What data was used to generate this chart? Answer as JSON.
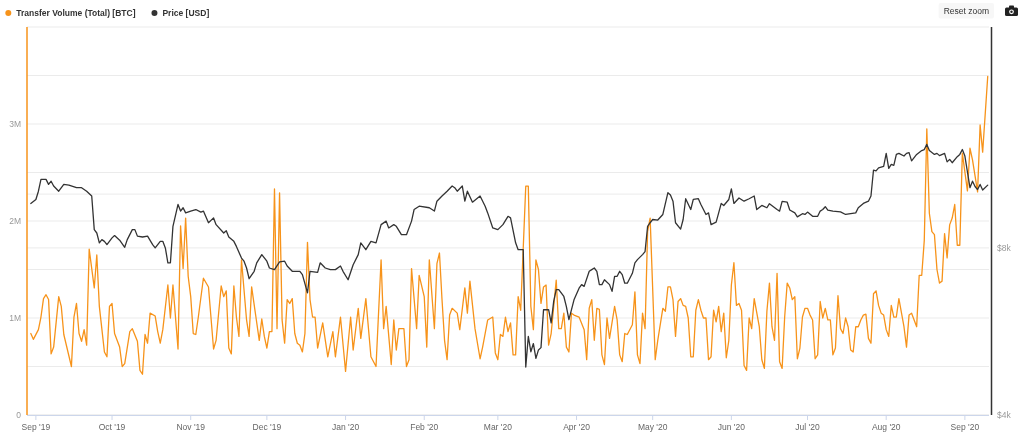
{
  "chart_data": {
    "type": "line",
    "log": "y2",
    "grid": "y",
    "legend": "top left",
    "xlim": [
      "2019-08-28T12:00",
      "2020-09-10T12:00"
    ],
    "xticks": [
      {
        "value": "2019-09-01",
        "label": "Sep '19"
      },
      {
        "value": "2019-10-01",
        "label": "Oct '19"
      },
      {
        "value": "2019-11-01",
        "label": "Nov '19"
      },
      {
        "value": "2019-12-01",
        "label": "Dec '19"
      },
      {
        "value": "2020-01-01",
        "label": "Jan '20"
      },
      {
        "value": "2020-02-01",
        "label": "Feb '20"
      },
      {
        "value": "2020-03-01",
        "label": "Mar '20"
      },
      {
        "value": "2020-04-01",
        "label": "Apr '20"
      },
      {
        "value": "2020-05-01",
        "label": "May '20"
      },
      {
        "value": "2020-06-01",
        "label": "Jun '20"
      },
      {
        "value": "2020-07-01",
        "label": "Jul '20"
      },
      {
        "value": "2020-08-01",
        "label": "Aug '20"
      },
      {
        "value": "2020-09-01",
        "label": "Sep '20"
      }
    ],
    "ylim": [
      0,
      4000000
    ],
    "yticks": [
      0,
      {
        "value": 500000,
        "label": null
      },
      {
        "value": 1000000,
        "label": "1M"
      },
      {
        "value": 1500000,
        "label": null
      },
      {
        "value": 2000000,
        "label": "2M"
      },
      {
        "value": 2500000,
        "label": null
      },
      {
        "value": 3000000,
        "label": "3M"
      },
      {
        "value": 3500000,
        "label": null
      },
      {
        "value": 4000000,
        "label": null
      }
    ],
    "y2lim": [
      4000,
      20000
    ],
    "y2ticks": [
      {
        "value": 4000,
        "label": "$4k"
      },
      {
        "value": 8000,
        "label": "$8k"
      },
      {
        "value": 10000,
        "label": null
      }
    ],
    "annotations": [
      "Reset zoom"
    ],
    "series": [
      {
        "name": "Transfer Volume (Total) [BTC]",
        "color": "#f7931a",
        "x": [
          "2019-08-30",
          "2019-08-31",
          "2019-09-02",
          "2019-09-03",
          "2019-09-04",
          "2019-09-05",
          "2019-09-06",
          "2019-09-07",
          "2019-09-08",
          "2019-09-10",
          "2019-09-11",
          "2019-09-12",
          "2019-09-15",
          "2019-09-16",
          "2019-09-17",
          "2019-09-18",
          "2019-09-19",
          "2019-09-20",
          "2019-09-21",
          "2019-09-22",
          "2019-09-24",
          "2019-09-25",
          "2019-09-26",
          "2019-09-28",
          "2019-09-29",
          "2019-09-30",
          "2019-10-01",
          "2019-10-02",
          "2019-10-04",
          "2019-10-05",
          "2019-10-06",
          "2019-10-08",
          "2019-10-09",
          "2019-10-11",
          "2019-10-12",
          "2019-10-13",
          "2019-10-14",
          "2019-10-15",
          "2019-10-16",
          "2019-10-18",
          "2019-10-19",
          "2019-10-20",
          "2019-10-21",
          "2019-10-23",
          "2019-10-24",
          "2019-10-25",
          "2019-10-27",
          "2019-10-28",
          "2019-10-29",
          "2019-10-30",
          "2019-10-31",
          "2019-11-01",
          "2019-11-02",
          "2019-11-03",
          "2019-11-04",
          "2019-11-06",
          "2019-11-08",
          "2019-11-10",
          "2019-11-11",
          "2019-11-13",
          "2019-11-14",
          "2019-11-15",
          "2019-11-16",
          "2019-11-17",
          "2019-11-18",
          "2019-11-19",
          "2019-11-20",
          "2019-11-21",
          "2019-11-23",
          "2019-11-24",
          "2019-11-25",
          "2019-11-28",
          "2019-11-29",
          "2019-11-30",
          "2019-12-01",
          "2019-12-02",
          "2019-12-03",
          "2019-12-04",
          "2019-12-05",
          "2019-12-06",
          "2019-12-07",
          "2019-12-08",
          "2019-12-09",
          "2019-12-10",
          "2019-12-11",
          "2019-12-12",
          "2019-12-13",
          "2019-12-14",
          "2019-12-15",
          "2019-12-16",
          "2019-12-17",
          "2019-12-18",
          "2019-12-19",
          "2019-12-20",
          "2019-12-21",
          "2019-12-23",
          "2019-12-25",
          "2019-12-27",
          "2019-12-28",
          "2019-12-30",
          "2020-01-01",
          "2020-01-03",
          "2020-01-04",
          "2020-01-06",
          "2020-01-07",
          "2020-01-09",
          "2020-01-11",
          "2020-01-13",
          "2020-01-15",
          "2020-01-16",
          "2020-01-17",
          "2020-01-19",
          "2020-01-20",
          "2020-01-21",
          "2020-01-22",
          "2020-01-24",
          "2020-01-25",
          "2020-01-26",
          "2020-01-27",
          "2020-01-29",
          "2020-01-30",
          "2020-02-01",
          "2020-02-02",
          "2020-02-03",
          "2020-02-05",
          "2020-02-06",
          "2020-02-07",
          "2020-02-08",
          "2020-02-09",
          "2020-02-10",
          "2020-02-11",
          "2020-02-12",
          "2020-02-14",
          "2020-02-15",
          "2020-02-17",
          "2020-02-18",
          "2020-02-19",
          "2020-02-21",
          "2020-02-23",
          "2020-02-24",
          "2020-02-26",
          "2020-02-28",
          "2020-02-29",
          "2020-03-01",
          "2020-03-02",
          "2020-03-03",
          "2020-03-04",
          "2020-03-05",
          "2020-03-06",
          "2020-03-07",
          "2020-03-08",
          "2020-03-09",
          "2020-03-10",
          "2020-03-12",
          "2020-03-13",
          "2020-03-14",
          "2020-03-15",
          "2020-03-16",
          "2020-03-17",
          "2020-03-18",
          "2020-03-19",
          "2020-03-20",
          "2020-03-21",
          "2020-03-22",
          "2020-03-24",
          "2020-03-25",
          "2020-03-26",
          "2020-03-27",
          "2020-03-28",
          "2020-03-29",
          "2020-03-30",
          "2020-03-31",
          "2020-04-02",
          "2020-04-04",
          "2020-04-05",
          "2020-04-06",
          "2020-04-07",
          "2020-04-08",
          "2020-04-09",
          "2020-04-10",
          "2020-04-11",
          "2020-04-12",
          "2020-04-13",
          "2020-04-14",
          "2020-04-16",
          "2020-04-17",
          "2020-04-18",
          "2020-04-19",
          "2020-04-20",
          "2020-04-21",
          "2020-04-23",
          "2020-04-24",
          "2020-04-25",
          "2020-04-26",
          "2020-04-27",
          "2020-04-28",
          "2020-04-29",
          "2020-04-30",
          "2020-05-02",
          "2020-05-03",
          "2020-05-05",
          "2020-05-06",
          "2020-05-07",
          "2020-05-08",
          "2020-05-09",
          "2020-05-10",
          "2020-05-11",
          "2020-05-12",
          "2020-05-13",
          "2020-05-14",
          "2020-05-15",
          "2020-05-16",
          "2020-05-17",
          "2020-05-18",
          "2020-05-19",
          "2020-05-20",
          "2020-05-21",
          "2020-05-22",
          "2020-05-23",
          "2020-05-24",
          "2020-05-25",
          "2020-05-26",
          "2020-05-27",
          "2020-05-28",
          "2020-05-29",
          "2020-05-30",
          "2020-05-31",
          "2020-06-01",
          "2020-06-02",
          "2020-06-03",
          "2020-06-04",
          "2020-06-05",
          "2020-06-06",
          "2020-06-07",
          "2020-06-08",
          "2020-06-09",
          "2020-06-10",
          "2020-06-12",
          "2020-06-13",
          "2020-06-14",
          "2020-06-15",
          "2020-06-16",
          "2020-06-17",
          "2020-06-18",
          "2020-06-19",
          "2020-06-20",
          "2020-06-21",
          "2020-06-22",
          "2020-06-23",
          "2020-06-24",
          "2020-06-25",
          "2020-06-26",
          "2020-06-27",
          "2020-06-28",
          "2020-06-29",
          "2020-06-30",
          "2020-07-01",
          "2020-07-02",
          "2020-07-03",
          "2020-07-04",
          "2020-07-05",
          "2020-07-06",
          "2020-07-07",
          "2020-07-08",
          "2020-07-09",
          "2020-07-10",
          "2020-07-11",
          "2020-07-12",
          "2020-07-13",
          "2020-07-14",
          "2020-07-15",
          "2020-07-16",
          "2020-07-17",
          "2020-07-18",
          "2020-07-19",
          "2020-07-20",
          "2020-07-21",
          "2020-07-22",
          "2020-07-23",
          "2020-07-24",
          "2020-07-25",
          "2020-07-26",
          "2020-07-27",
          "2020-07-28",
          "2020-07-29",
          "2020-07-30",
          "2020-07-31",
          "2020-08-01",
          "2020-08-02",
          "2020-08-03",
          "2020-08-04",
          "2020-08-05",
          "2020-08-06",
          "2020-08-08",
          "2020-08-09",
          "2020-08-10",
          "2020-08-11",
          "2020-08-13",
          "2020-08-14",
          "2020-08-15",
          "2020-08-16",
          "2020-08-17",
          "2020-08-18",
          "2020-08-19",
          "2020-08-20",
          "2020-08-21",
          "2020-08-22",
          "2020-08-23",
          "2020-08-24",
          "2020-08-25",
          "2020-08-26",
          "2020-08-27",
          "2020-08-28",
          "2020-08-29",
          "2020-08-30",
          "2020-08-31",
          "2020-09-02",
          "2020-09-03",
          "2020-09-04",
          "2020-09-06",
          "2020-09-07",
          "2020-09-08",
          "2020-09-10"
        ],
        "values": [
          840000,
          780000,
          880000,
          1010000,
          1200000,
          1240000,
          1190000,
          630000,
          700000,
          1220000,
          1120000,
          830000,
          500000,
          1010000,
          1150000,
          840000,
          760000,
          880000,
          720000,
          1710000,
          1310000,
          1650000,
          1120000,
          650000,
          600000,
          1120000,
          1150000,
          840000,
          700000,
          500000,
          530000,
          860000,
          890000,
          760000,
          460000,
          420000,
          830000,
          740000,
          1050000,
          1020000,
          860000,
          740000,
          880000,
          1340000,
          1000000,
          1340000,
          680000,
          1950000,
          1510000,
          2030000,
          1430000,
          1220000,
          840000,
          830000,
          1010000,
          1410000,
          1320000,
          680000,
          770000,
          1330000,
          1220000,
          1280000,
          690000,
          630000,
          1330000,
          1010000,
          810000,
          1600000,
          980000,
          810000,
          1320000,
          770000,
          990000,
          810000,
          690000,
          860000,
          860000,
          2330000,
          890000,
          2290000,
          980000,
          740000,
          1190000,
          1150000,
          1200000,
          840000,
          740000,
          720000,
          650000,
          840000,
          1780000,
          1190000,
          1010000,
          1010000,
          690000,
          950000,
          600000,
          860000,
          600000,
          1010000,
          450000,
          1010000,
          670000,
          1100000,
          790000,
          1200000,
          600000,
          500000,
          1600000,
          890000,
          1120000,
          520000,
          980000,
          670000,
          890000,
          890000,
          500000,
          570000,
          1510000,
          890000,
          1440000,
          1220000,
          700000,
          1600000,
          890000,
          1560000,
          1670000,
          1190000,
          770000,
          570000,
          1030000,
          1100000,
          1050000,
          880000,
          1310000,
          1050000,
          1380000,
          890000,
          580000,
          700000,
          980000,
          1010000,
          640000,
          570000,
          830000,
          810000,
          1010000,
          860000,
          950000,
          620000,
          620000,
          1220000,
          1080000,
          2360000,
          2360000,
          1120000,
          880000,
          1600000,
          1500000,
          1150000,
          1320000,
          1340000,
          720000,
          840000,
          1390000,
          890000,
          890000,
          1050000,
          700000,
          650000,
          1050000,
          1030000,
          1010000,
          880000,
          570000,
          1100000,
          1190000,
          770000,
          1100000,
          1090000,
          620000,
          520000,
          1000000,
          790000,
          1120000,
          980000,
          620000,
          550000,
          840000,
          830000,
          930000,
          1270000,
          620000,
          530000,
          1050000,
          890000,
          1890000,
          2030000,
          570000,
          770000,
          1100000,
          1070000,
          1320000,
          1320000,
          1190000,
          810000,
          1170000,
          1200000,
          1130000,
          1120000,
          1000000,
          600000,
          600000,
          1080000,
          1190000,
          1080000,
          1000000,
          1000000,
          570000,
          600000,
          1080000,
          960000,
          1120000,
          860000,
          1050000,
          590000,
          770000,
          1340000,
          1570000,
          1130000,
          1150000,
          1080000,
          510000,
          460000,
          1000000,
          890000,
          1200000,
          910000,
          570000,
          480000,
          1070000,
          1360000,
          910000,
          770000,
          1460000,
          550000,
          480000,
          1010000,
          1360000,
          1310000,
          1190000,
          1220000,
          580000,
          690000,
          1010000,
          1100000,
          1100000,
          1030000,
          980000,
          580000,
          620000,
          1170000,
          1000000,
          1100000,
          980000,
          980000,
          620000,
          690000,
          1230000,
          890000,
          840000,
          1000000,
          910000,
          670000,
          650000,
          910000,
          910000,
          980000,
          1030000,
          1040000,
          790000,
          740000,
          1250000,
          1280000,
          1130000,
          1050000,
          1030000,
          880000,
          810000,
          1130000,
          1010000,
          1010000,
          1200000,
          910000,
          700000,
          1030000,
          1050000,
          910000,
          1440000,
          1440000,
          1800000,
          2950000,
          2080000,
          1890000,
          1860000,
          1500000,
          1360000,
          1380000,
          1870000,
          1620000,
          1960000,
          2030000,
          2170000,
          1750000,
          1750000,
          2700000,
          2310000,
          2750000,
          2630000,
          2300000,
          2990000,
          2710000,
          3490000
        ]
      },
      {
        "name": "Price [USD]",
        "color": "#333333",
        "axis": "y2",
        "x": [
          "2019-08-30",
          "2019-09-01",
          "2019-09-02",
          "2019-09-03",
          "2019-09-05",
          "2019-09-06",
          "2019-09-07",
          "2019-09-08",
          "2019-09-10",
          "2019-09-12",
          "2019-09-14",
          "2019-09-17",
          "2019-09-19",
          "2019-09-21",
          "2019-09-23",
          "2019-09-24",
          "2019-09-25",
          "2019-09-26",
          "2019-09-27",
          "2019-09-28",
          "2019-09-29",
          "2019-10-01",
          "2019-10-02",
          "2019-10-04",
          "2019-10-06",
          "2019-10-07",
          "2019-10-09",
          "2019-10-10",
          "2019-10-11",
          "2019-10-13",
          "2019-10-15",
          "2019-10-17",
          "2019-10-18",
          "2019-10-20",
          "2019-10-21",
          "2019-10-22",
          "2019-10-23",
          "2019-10-24",
          "2019-10-25",
          "2019-10-27",
          "2019-10-28",
          "2019-10-29",
          "2019-10-30",
          "2019-11-01",
          "2019-11-03",
          "2019-11-05",
          "2019-11-06",
          "2019-11-08",
          "2019-11-10",
          "2019-11-11",
          "2019-11-14",
          "2019-11-15",
          "2019-11-16",
          "2019-11-18",
          "2019-11-19",
          "2019-11-21",
          "2019-11-22",
          "2019-11-23",
          "2019-11-24",
          "2019-11-26",
          "2019-11-27",
          "2019-11-29",
          "2019-12-01",
          "2019-12-02",
          "2019-12-04",
          "2019-12-06",
          "2019-12-08",
          "2019-12-09",
          "2019-12-11",
          "2019-12-14",
          "2019-12-15",
          "2019-12-17",
          "2019-12-18",
          "2019-12-21",
          "2019-12-22",
          "2019-12-24",
          "2019-12-26",
          "2019-12-28",
          "2019-12-30",
          "2019-12-31",
          "2020-01-02",
          "2020-01-04",
          "2020-01-06",
          "2020-01-07",
          "2020-01-09",
          "2020-01-11",
          "2020-01-13",
          "2020-01-15",
          "2020-01-17",
          "2020-01-18",
          "2020-01-20",
          "2020-01-21",
          "2020-01-23",
          "2020-01-25",
          "2020-01-27",
          "2020-01-28",
          "2020-01-30",
          "2020-02-03",
          "2020-02-05",
          "2020-02-06",
          "2020-02-08",
          "2020-02-10",
          "2020-02-12",
          "2020-02-13",
          "2020-02-14",
          "2020-02-16",
          "2020-02-17",
          "2020-02-18",
          "2020-02-20",
          "2020-02-23",
          "2020-02-25",
          "2020-02-26",
          "2020-02-28",
          "2020-03-01",
          "2020-03-03",
          "2020-03-05",
          "2020-03-06",
          "2020-03-08",
          "2020-03-09",
          "2020-03-11",
          "2020-03-12",
          "2020-03-13",
          "2020-03-14",
          "2020-03-15",
          "2020-03-16",
          "2020-03-17",
          "2020-03-18",
          "2020-03-19",
          "2020-03-21",
          "2020-03-22",
          "2020-03-23",
          "2020-03-24",
          "2020-03-25",
          "2020-03-27",
          "2020-03-28",
          "2020-03-29",
          "2020-03-31",
          "2020-04-02",
          "2020-04-03",
          "2020-04-04",
          "2020-04-06",
          "2020-04-07",
          "2020-04-08",
          "2020-04-09",
          "2020-04-10",
          "2020-04-11",
          "2020-04-12",
          "2020-04-14",
          "2020-04-15",
          "2020-04-16",
          "2020-04-17",
          "2020-04-18",
          "2020-04-19",
          "2020-04-20",
          "2020-04-21",
          "2020-04-23",
          "2020-04-24",
          "2020-04-25",
          "2020-04-27",
          "2020-04-28",
          "2020-04-29",
          "2020-04-30",
          "2020-05-01",
          "2020-05-03",
          "2020-05-05",
          "2020-05-07",
          "2020-05-08",
          "2020-05-09",
          "2020-05-10",
          "2020-05-12",
          "2020-05-13",
          "2020-05-14",
          "2020-05-16",
          "2020-05-17",
          "2020-05-19",
          "2020-05-20",
          "2020-05-22",
          "2020-05-23",
          "2020-05-24",
          "2020-05-26",
          "2020-05-27",
          "2020-05-28",
          "2020-05-29",
          "2020-05-31",
          "2020-06-01",
          "2020-06-02",
          "2020-06-04",
          "2020-06-06",
          "2020-06-08",
          "2020-06-10",
          "2020-06-11",
          "2020-06-13",
          "2020-06-15",
          "2020-06-16",
          "2020-06-19",
          "2020-06-20",
          "2020-06-21",
          "2020-06-23",
          "2020-06-24",
          "2020-06-26",
          "2020-06-27",
          "2020-06-29",
          "2020-06-30",
          "2020-07-01",
          "2020-07-03",
          "2020-07-05",
          "2020-07-06",
          "2020-07-07",
          "2020-07-08",
          "2020-07-09",
          "2020-07-11",
          "2020-07-14",
          "2020-07-16",
          "2020-07-20",
          "2020-07-21",
          "2020-07-23",
          "2020-07-25",
          "2020-07-26",
          "2020-07-27",
          "2020-07-28",
          "2020-07-29",
          "2020-07-31",
          "2020-08-01",
          "2020-08-02",
          "2020-08-03",
          "2020-08-04",
          "2020-08-05",
          "2020-08-06",
          "2020-08-08",
          "2020-08-09",
          "2020-08-10",
          "2020-08-11",
          "2020-08-13",
          "2020-08-15",
          "2020-08-16",
          "2020-08-17",
          "2020-08-18",
          "2020-08-20",
          "2020-08-21",
          "2020-08-22",
          "2020-08-24",
          "2020-08-25",
          "2020-08-26",
          "2020-08-27",
          "2020-08-29",
          "2020-08-30",
          "2020-08-31",
          "2020-09-01",
          "2020-09-03",
          "2020-09-04",
          "2020-09-05",
          "2020-09-06",
          "2020-09-07",
          "2020-09-08",
          "2020-09-10"
        ],
        "values": [
          9620,
          9780,
          10120,
          10630,
          10630,
          10410,
          10550,
          10340,
          10120,
          10410,
          10380,
          10270,
          10270,
          10120,
          9920,
          8630,
          8510,
          8170,
          8280,
          8220,
          8110,
          8340,
          8420,
          8260,
          8020,
          8280,
          8630,
          8630,
          8400,
          8370,
          8400,
          8110,
          8000,
          8220,
          8220,
          8000,
          7520,
          7520,
          8750,
          9580,
          9320,
          9450,
          9250,
          9320,
          9380,
          9280,
          9320,
          8880,
          9060,
          8810,
          8510,
          8590,
          8370,
          8220,
          8050,
          7670,
          7570,
          7360,
          7040,
          7260,
          7520,
          7780,
          7570,
          7360,
          7310,
          7550,
          7570,
          7420,
          7260,
          7260,
          7160,
          6640,
          7260,
          7230,
          7520,
          7360,
          7310,
          7310,
          7420,
          7260,
          7010,
          7460,
          7780,
          8170,
          7940,
          8220,
          8170,
          8810,
          8940,
          8690,
          8810,
          8750,
          8450,
          8450,
          8940,
          9380,
          9510,
          9450,
          9320,
          9710,
          9920,
          10120,
          10340,
          10270,
          10120,
          10340,
          9710,
          10120,
          9670,
          9920,
          9510,
          9250,
          8690,
          8630,
          8810,
          9120,
          9060,
          8170,
          7940,
          7940,
          4880,
          5540,
          5200,
          5380,
          5060,
          5240,
          5290,
          6190,
          6190,
          5860,
          6410,
          6730,
          6730,
          6540,
          6270,
          5940,
          6450,
          6770,
          6870,
          6820,
          7260,
          7310,
          7360,
          7260,
          6870,
          6870,
          7010,
          6870,
          6680,
          7110,
          7110,
          7260,
          7160,
          6910,
          6910,
          7200,
          7520,
          7620,
          7780,
          7880,
          8750,
          8880,
          9000,
          8980,
          9190,
          10060,
          9960,
          9710,
          8880,
          8650,
          9000,
          9810,
          9380,
          9780,
          9810,
          9580,
          9190,
          9250,
          8810,
          8900,
          9250,
          9620,
          9540,
          9780,
          10220,
          9620,
          9840,
          9710,
          9810,
          9920,
          9380,
          9540,
          9450,
          9610,
          9380,
          9320,
          9700,
          9670,
          9360,
          9250,
          9100,
          9220,
          9190,
          9280,
          9120,
          9120,
          9320,
          9380,
          9490,
          9360,
          9320,
          9290,
          9190,
          9250,
          9450,
          9620,
          9710,
          9920,
          11050,
          11010,
          11150,
          11220,
          11840,
          11130,
          11310,
          11270,
          11790,
          11840,
          11710,
          11840,
          11880,
          11480,
          11790,
          11980,
          12030,
          12290,
          11980,
          11790,
          11840,
          11730,
          11840,
          11430,
          11550,
          11390,
          11680,
          11790,
          12030,
          11710,
          10270,
          10550,
          10320,
          10190,
          10410,
          10170,
          10380
        ]
      }
    ]
  }
}
